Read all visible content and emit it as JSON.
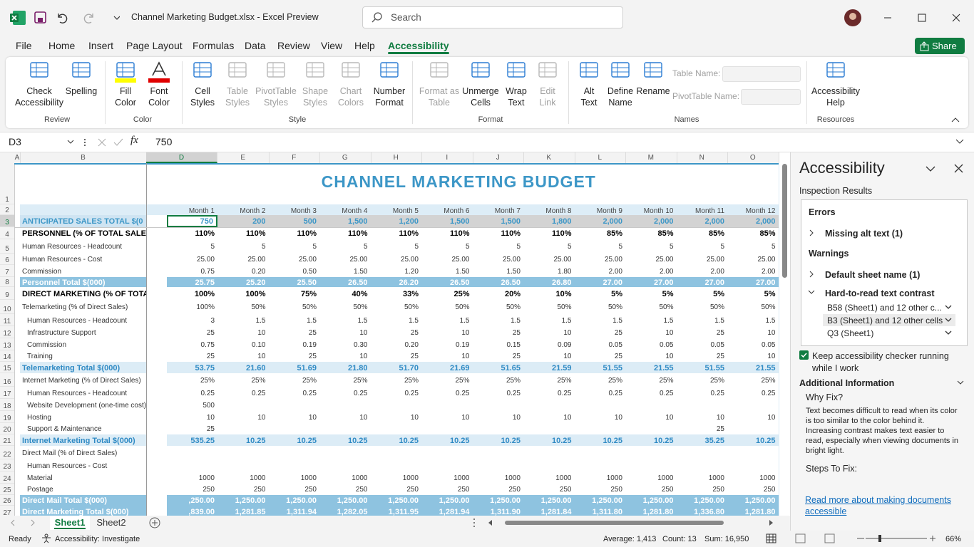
{
  "title_bar": {
    "title": "Channel Marketing Budget.xlsx  -  Excel Preview",
    "search": "Search"
  },
  "menu": {
    "tabs": [
      "File",
      "Home",
      "Insert",
      "Page Layout",
      "Formulas",
      "Data",
      "Review",
      "View",
      "Help",
      "Accessibility"
    ],
    "active_tab": 9,
    "share": "Share"
  },
  "ribbon": {
    "groups": [
      {
        "name": "Review",
        "buttons": [
          {
            "label": [
              "Check",
              "Accessibility"
            ],
            "enabled": true
          },
          {
            "label": [
              "Spelling"
            ],
            "enabled": true
          }
        ]
      },
      {
        "name": "Color",
        "buttons": [
          {
            "label": [
              "Fill",
              "Color"
            ],
            "enabled": true
          },
          {
            "label": [
              "Font",
              "Color"
            ],
            "enabled": true
          }
        ]
      },
      {
        "name": "Style",
        "buttons": [
          {
            "label": [
              "Cell",
              "Styles"
            ],
            "enabled": true
          },
          {
            "label": [
              "Table",
              "Styles"
            ],
            "enabled": false
          },
          {
            "label": [
              "PivotTable",
              "Styles"
            ],
            "enabled": false
          },
          {
            "label": [
              "Shape",
              "Styles"
            ],
            "enabled": false
          },
          {
            "label": [
              "Chart",
              "Colors"
            ],
            "enabled": false
          },
          {
            "label": [
              "Number",
              "Format"
            ],
            "enabled": true
          }
        ]
      },
      {
        "name": "Format",
        "buttons": [
          {
            "label": [
              "Format as",
              "Table"
            ],
            "enabled": false
          },
          {
            "label": [
              "Unmerge",
              "Cells"
            ],
            "enabled": true
          },
          {
            "label": [
              "Wrap",
              "Text"
            ],
            "enabled": true
          },
          {
            "label": [
              "Edit",
              "Link"
            ],
            "enabled": false
          }
        ]
      },
      {
        "name": "Names",
        "buttons": [
          {
            "label": [
              "Alt",
              "Text"
            ],
            "enabled": true
          },
          {
            "label": [
              "Define",
              "Name"
            ],
            "enabled": true
          },
          {
            "label": [
              "Rename"
            ],
            "enabled": true
          }
        ],
        "fields": [
          "Table Name:",
          "PivotTable Name:"
        ]
      },
      {
        "name": "Resources",
        "buttons": [
          {
            "label": [
              "Accessibility",
              "Help"
            ],
            "enabled": true
          }
        ]
      }
    ]
  },
  "formula_bar": {
    "name_box": "D3",
    "fx": "fx",
    "value": "750"
  },
  "sheet": {
    "columns": [
      "A",
      "B",
      "D",
      "E",
      "F",
      "G",
      "H",
      "I",
      "J",
      "K",
      "L",
      "M",
      "N",
      "O"
    ],
    "row_numbers": [
      1,
      2,
      3,
      4,
      5,
      6,
      7,
      8,
      9,
      10,
      11,
      12,
      13,
      14,
      15,
      16,
      17,
      18,
      19,
      20,
      21,
      22,
      23,
      24,
      25,
      26,
      27
    ],
    "title": "CHANNEL MARKETING BUDGET",
    "months": [
      "Month 1",
      "Month 2",
      "Month 3",
      "Month 4",
      "Month 5",
      "Month 6",
      "Month 7",
      "Month 8",
      "Month 9",
      "Month 10",
      "Month 11",
      "Month 12"
    ],
    "rows": [
      {
        "label": "ANTICIPATED SALES TOTAL $(0",
        "values": [
          "750",
          "200",
          "500",
          "1,500",
          "1,200",
          "1,500",
          "1,500",
          "1,800",
          "2,000",
          "2,000",
          "2,000",
          "2,000"
        ]
      },
      {
        "label": "PERSONNEL (% OF TOTAL SALES",
        "values": [
          "110%",
          "110%",
          "110%",
          "110%",
          "110%",
          "110%",
          "110%",
          "110%",
          "85%",
          "85%",
          "85%",
          "85%"
        ]
      },
      {
        "label": "Human Resources - Headcount",
        "values": [
          "5",
          "5",
          "5",
          "5",
          "5",
          "5",
          "5",
          "5",
          "5",
          "5",
          "5",
          "5"
        ]
      },
      {
        "label": "Human Resources - Cost",
        "values": [
          "25.00",
          "25.00",
          "25.00",
          "25.00",
          "25.00",
          "25.00",
          "25.00",
          "25.00",
          "25.00",
          "25.00",
          "25.00",
          "25.00"
        ]
      },
      {
        "label": "Commission",
        "values": [
          "0.75",
          "0.20",
          "0.50",
          "1.50",
          "1.20",
          "1.50",
          "1.50",
          "1.80",
          "2.00",
          "2.00",
          "2.00",
          "2.00"
        ]
      },
      {
        "label": "Personnel Total $(000)",
        "values": [
          "25.75",
          "25.20",
          "25.50",
          "26.50",
          "26.20",
          "26.50",
          "26.50",
          "26.80",
          "27.00",
          "27.00",
          "27.00",
          "27.00"
        ]
      },
      {
        "label": "DIRECT MARKETING (% OF TOTA",
        "values": [
          "100%",
          "100%",
          "75%",
          "40%",
          "33%",
          "25%",
          "20%",
          "10%",
          "5%",
          "5%",
          "5%",
          "5%"
        ]
      },
      {
        "label": "Telemarketing (% of Direct Sales)",
        "values": [
          "100%",
          "50%",
          "50%",
          "50%",
          "50%",
          "50%",
          "50%",
          "50%",
          "50%",
          "50%",
          "50%",
          "50%"
        ]
      },
      {
        "label": "Human Resources - Headcount",
        "values": [
          "3",
          "1.5",
          "1.5",
          "1.5",
          "1.5",
          "1.5",
          "1.5",
          "1.5",
          "1.5",
          "1.5",
          "1.5",
          "1.5"
        ]
      },
      {
        "label": "Infrastructure Support",
        "values": [
          "25",
          "10",
          "25",
          "10",
          "25",
          "10",
          "25",
          "10",
          "25",
          "10",
          "25",
          "10"
        ]
      },
      {
        "label": "Commission",
        "values": [
          "0.75",
          "0.10",
          "0.19",
          "0.30",
          "0.20",
          "0.19",
          "0.15",
          "0.09",
          "0.05",
          "0.05",
          "0.05",
          "0.05"
        ]
      },
      {
        "label": "Training",
        "values": [
          "25",
          "10",
          "25",
          "10",
          "25",
          "10",
          "25",
          "10",
          "25",
          "10",
          "25",
          "10"
        ]
      },
      {
        "label": "Telemarketing Total $(000)",
        "values": [
          "53.75",
          "21.60",
          "51.69",
          "21.80",
          "51.70",
          "21.69",
          "51.65",
          "21.59",
          "51.55",
          "21.55",
          "51.55",
          "21.55"
        ]
      },
      {
        "label": "Internet Marketing (% of Direct Sales)",
        "values": [
          "25%",
          "25%",
          "25%",
          "25%",
          "25%",
          "25%",
          "25%",
          "25%",
          "25%",
          "25%",
          "25%",
          "25%"
        ]
      },
      {
        "label": "Human Resources - Headcount",
        "values": [
          "0.25",
          "0.25",
          "0.25",
          "0.25",
          "0.25",
          "0.25",
          "0.25",
          "0.25",
          "0.25",
          "0.25",
          "0.25",
          "0.25"
        ]
      },
      {
        "label": "Website Development (one-time cost)",
        "values": [
          "500",
          null,
          null,
          null,
          null,
          null,
          null,
          null,
          null,
          null,
          null,
          null
        ]
      },
      {
        "label": "Hosting",
        "values": [
          "10",
          "10",
          "10",
          "10",
          "10",
          "10",
          "10",
          "10",
          "10",
          "10",
          "10",
          "10"
        ]
      },
      {
        "label": "Support & Maintenance",
        "values": [
          "25",
          null,
          null,
          null,
          null,
          null,
          null,
          null,
          null,
          null,
          "25",
          null
        ]
      },
      {
        "label": "Internet Marketing Total $(000)",
        "values": [
          "535.25",
          "10.25",
          "10.25",
          "10.25",
          "10.25",
          "10.25",
          "10.25",
          "10.25",
          "10.25",
          "10.25",
          "35.25",
          "10.25"
        ]
      },
      {
        "label": "Direct Mail (% of Direct Sales)",
        "values": [
          null,
          null,
          null,
          null,
          null,
          null,
          null,
          null,
          null,
          null,
          null,
          null
        ]
      },
      {
        "label": "Human Resources - Cost",
        "values": [
          null,
          null,
          null,
          null,
          null,
          null,
          null,
          null,
          null,
          null,
          null,
          null
        ]
      },
      {
        "label": "Material",
        "values": [
          "1000",
          "1000",
          "1000",
          "1000",
          "1000",
          "1000",
          "1000",
          "1000",
          "1000",
          "1000",
          "1000",
          "1000"
        ]
      },
      {
        "label": "Postage",
        "values": [
          "250",
          "250",
          "250",
          "250",
          "250",
          "250",
          "250",
          "250",
          "250",
          "250",
          "250",
          "250"
        ]
      },
      {
        "label": "Direct Mail Total $(000)",
        "values": [
          ",250.00",
          "1,250.00",
          "1,250.00",
          "1,250.00",
          "1,250.00",
          "1,250.00",
          "1,250.00",
          "1,250.00",
          "1,250.00",
          "1,250.00",
          "1,250.00",
          "1,250.00"
        ]
      },
      {
        "label": "Direct Marketing Total $(000)",
        "values": [
          ",839.00",
          "1,281.85",
          "1,311.94",
          "1,282.05",
          "1,311.95",
          "1,281.94",
          "1,311.90",
          "1,281.84",
          "1,311.80",
          "1,281.80",
          "1,336.80",
          "1,281.80"
        ]
      }
    ]
  },
  "sheet_tabs": {
    "tabs": [
      "Sheet1",
      "Sheet2"
    ],
    "active": 0
  },
  "status_bar": {
    "mode": "Ready",
    "accessibility": "Accessibility: Investigate",
    "average": "Average: 1,413",
    "count": "Count: 13",
    "sum": "Sum: 16,950",
    "zoom": "66%"
  },
  "pane": {
    "title": "Accessibility",
    "subtitle": "Inspection Results",
    "errors_heading": "Errors",
    "errors": [
      "Missing alt text (1)"
    ],
    "warnings_heading": "Warnings",
    "warnings": [
      "Default sheet name (1)",
      "Hard-to-read text contrast"
    ],
    "contrast_items": [
      "B58 (Sheet1) and 12 other c...",
      "B3 (Sheet1) and 12 other cells",
      "Q3 (Sheet1)"
    ],
    "checkbox": "Keep accessibility checker running while I work",
    "info_heading": "Additional Information",
    "why_heading": "Why Fix?",
    "why_text": "Text becomes difficult to read when its color is too similar to the color behind it. Increasing contrast makes text easier to read, especially when viewing documents in bright light.",
    "steps_heading": "Steps To Fix:",
    "link": "Read more about making documents accessible"
  }
}
